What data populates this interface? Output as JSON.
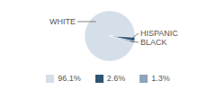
{
  "chart_data": {
    "type": "pie",
    "categories": [
      "WHITE",
      "HISPANIC",
      "BLACK"
    ],
    "values": [
      96.1,
      2.6,
      1.3
    ],
    "value_labels": [
      "96.1%",
      "2.6%",
      "1.3%"
    ],
    "colors": [
      "#d5dfe9",
      "#2e5475",
      "#8ea4b8"
    ],
    "legend": "bottom"
  }
}
